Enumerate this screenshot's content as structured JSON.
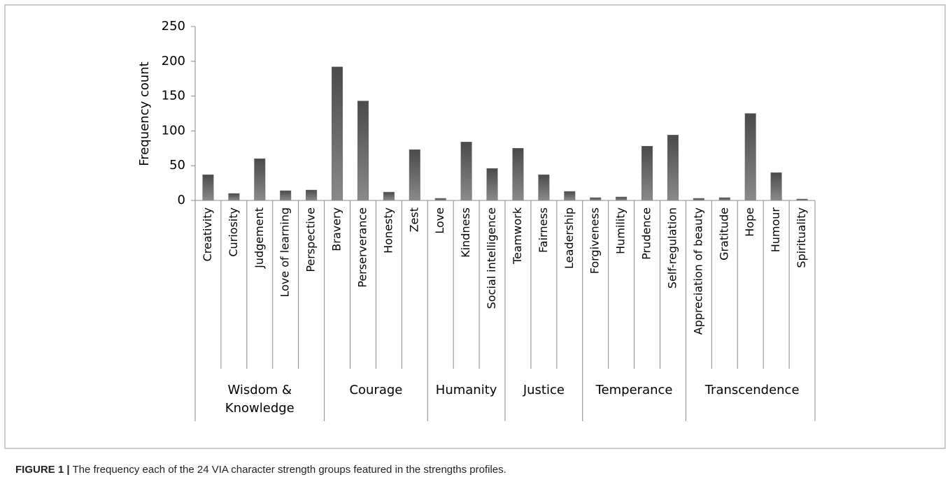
{
  "chart_data": {
    "type": "bar",
    "y_label": "Frequency count",
    "categories": [
      "Creativity",
      "Curiosity",
      "Judgement",
      "Love of learning",
      "Perspective",
      "Bravery",
      "Perserverance",
      "Honesty",
      "Zest",
      "Love",
      "Kindness",
      "Social intelligence",
      "Teamwork",
      "Fairness",
      "Leadership",
      "Forgiveness",
      "Humility",
      "Prudence",
      "Self-regulation",
      "Appreciation of beauty",
      "Gratitude",
      "Hope",
      "Humour",
      "Spirituality"
    ],
    "values": [
      37,
      10,
      60,
      14,
      15,
      192,
      143,
      12,
      73,
      3,
      84,
      46,
      75,
      37,
      13,
      4,
      5,
      78,
      94,
      3,
      4,
      125,
      40,
      2
    ],
    "groups": [
      {
        "name": "Wisdom & Knowledge",
        "size": 5
      },
      {
        "name": "Courage",
        "size": 4
      },
      {
        "name": "Humanity",
        "size": 3
      },
      {
        "name": "Justice",
        "size": 3
      },
      {
        "name": "Temperance",
        "size": 4
      },
      {
        "name": "Transcendence",
        "size": 5
      }
    ],
    "color": "#666666",
    "ylim": [
      0,
      250
    ],
    "yticks": [
      0,
      50,
      100,
      150,
      200,
      250
    ]
  },
  "caption": {
    "label": "FIGURE 1 |",
    "text": "The frequency each of the 24 VIA character strength groups featured in the strengths profiles."
  }
}
